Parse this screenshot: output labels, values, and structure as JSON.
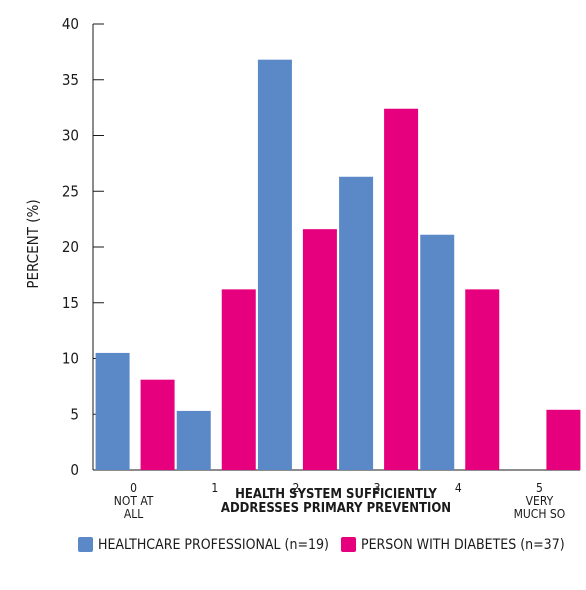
{
  "chart_data": {
    "type": "bar",
    "title": "",
    "ylabel": "PERCENT (%)",
    "xlabel_lines": [
      "HEALTH SYSTEM SUFFICIENTLY",
      "ADDRESSES PRIMARY PREVENTION"
    ],
    "categories": [
      [
        "0",
        "NOT AT",
        "ALL"
      ],
      [
        "1"
      ],
      [
        "2"
      ],
      [
        "3"
      ],
      [
        "4"
      ],
      [
        "5",
        "VERY",
        "MUCH SO"
      ]
    ],
    "ylim": [
      0,
      40
    ],
    "yticks": [
      0,
      5,
      10,
      15,
      20,
      25,
      30,
      35,
      40
    ],
    "grid": false,
    "legend": "bottom",
    "series": [
      {
        "name": "HEALTHCARE PROFESSIONAL (n=19)",
        "color": "#5B89C8",
        "values": [
          10.5,
          5.3,
          36.8,
          26.3,
          21.1,
          0
        ]
      },
      {
        "name": "PERSON WITH DIABETES (n=37)",
        "color": "#E6007E",
        "values": [
          8.1,
          16.2,
          21.6,
          32.4,
          16.2,
          5.4
        ]
      }
    ]
  }
}
